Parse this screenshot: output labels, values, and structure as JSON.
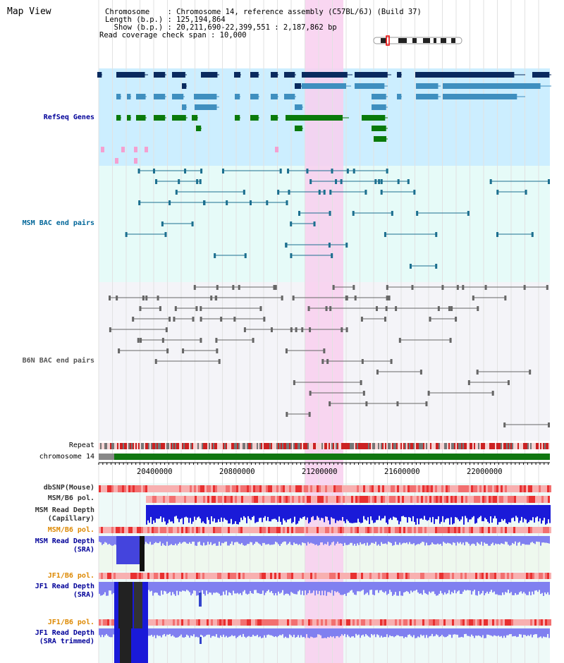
{
  "header": {
    "title": "Map View",
    "chromosome_line": "Chromosome    : Chromosome 14, reference assembly (C57BL/6J) (Build 37)",
    "length_line": "Length (b.p.) : 125,194,864",
    "show_line": "  Show (b.p.) : 20,211,690-22,399,551 : 2,187,862 bp",
    "coverage_line": "Read coverage check span : 10,000"
  },
  "tracks": {
    "refseq": "RefSeq Genes",
    "msm_bac": "MSM BAC end pairs",
    "b6n_bac": "B6N BAC end pairs",
    "repeat": "Repeat",
    "chromosome": "chromosome 14",
    "dbsnp": "dbSNP(Mouse)",
    "msm_b6_pol_1": "MSM/B6 pol.",
    "msm_read_depth_cap": "MSM Read Depth\n(Capillary)",
    "msm_b6_pol_2": "MSM/B6 pol.",
    "msm_read_depth_sra": "MSM Read Depth\n(SRA)",
    "jf1_b6_pol_1": "JF1/B6 pol.",
    "jf1_read_depth_sra": "JF1 Read Depth\n(SRA)",
    "jf1_b6_pol_2": "JF1/B6 pol.",
    "jf1_read_depth_trim": "JF1 Read Depth\n(SRA trimmed)"
  },
  "axis": {
    "ticks": [
      "20400000",
      "20800000",
      "21200000",
      "21600000",
      "22000000"
    ]
  },
  "colors": {
    "highlight": "#f8cfee",
    "refseq_bg": "#cceeff",
    "msm_bg": "#e6fbf8",
    "b6n_bg": "#f4f4f8",
    "navy": "#0a2a5e",
    "steel": "#3f8fbf",
    "green": "#0a7a0a",
    "pink": "#f4a0d0",
    "chrom_green": "#117711"
  }
}
